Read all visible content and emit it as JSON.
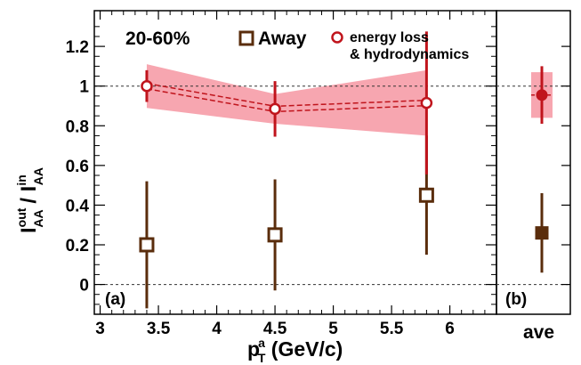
{
  "chart_data": {
    "type": "scatter",
    "panel_a": {
      "label": "(a)",
      "centrality": "20-60%",
      "xlabel": "p",
      "xlabel_sub": "T",
      "xlabel_sup": "a",
      "xlabel_unit": " (GeV/c)",
      "ylabel_base": "I",
      "ylabel_num_sup": "out",
      "ylabel_num_sub": "AA",
      "ylabel_slash": " / ",
      "ylabel_den_sup": "in",
      "ylabel_den_sub": "AA",
      "xlim": [
        2.95,
        6.4
      ],
      "ylim": [
        -0.15,
        1.38
      ],
      "xticks": [
        "3",
        "3.5",
        "4",
        "4.5",
        "5",
        "5.5",
        "6"
      ],
      "yticks": [
        "0",
        "0.2",
        "0.4",
        "0.6",
        "0.8",
        "1",
        "1.2"
      ],
      "reference_lines": [
        0,
        1
      ],
      "series": [
        {
          "name": "Away",
          "marker": "open-square",
          "color": "#5a2d0c",
          "points": [
            {
              "x": 3.4,
              "y": 0.2,
              "err": 0.32
            },
            {
              "x": 4.5,
              "y": 0.25,
              "err": 0.28
            },
            {
              "x": 5.8,
              "y": 0.45,
              "err": 0.3
            }
          ]
        },
        {
          "name": "energy loss",
          "name_line2": "& hydrodynamics",
          "marker": "open-circle",
          "color": "#c0141c",
          "band_color": "#f7a6b0",
          "points": [
            {
              "x": 3.4,
              "y": 1.0,
              "err": 0.08,
              "band_lo": 0.89,
              "band_hi": 1.11
            },
            {
              "x": 4.5,
              "y": 0.885,
              "err": 0.14,
              "band_lo": 0.81,
              "band_hi": 0.96
            },
            {
              "x": 5.8,
              "y": 0.915,
              "err": 0.36,
              "band_lo": 0.75,
              "band_hi": 1.08
            }
          ]
        }
      ]
    },
    "panel_b": {
      "label": "(b)",
      "xlabel": "ave",
      "series": [
        {
          "name": "Away",
          "marker": "filled-square",
          "color": "#5a2d0c",
          "y": 0.26,
          "err": 0.2
        },
        {
          "name": "energy loss & hydrodynamics",
          "marker": "filled-circle",
          "color": "#c0141c",
          "band_color": "#f7a6b0",
          "y": 0.955,
          "err": 0.145,
          "band_lo": 0.84,
          "band_hi": 1.07
        }
      ]
    }
  }
}
